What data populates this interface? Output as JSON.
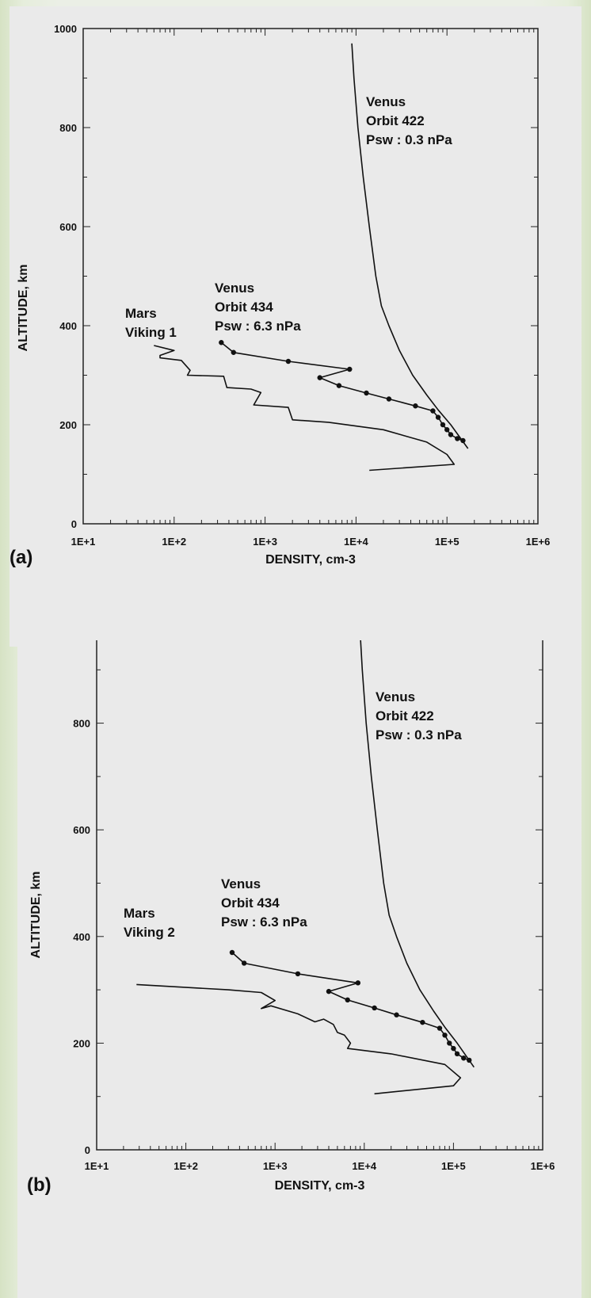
{
  "chart_data": [
    {
      "type": "line",
      "panel_label": "(a)",
      "xlabel": "DENSITY, cm-3",
      "ylabel": "ALTITUDE, km",
      "x_scale": "log",
      "xlim": [
        10,
        1000000
      ],
      "ylim": [
        0,
        1000
      ],
      "x_ticks": [
        10,
        100,
        1000,
        10000,
        100000,
        1000000
      ],
      "x_tick_labels": [
        "1E+1",
        "1E+2",
        "1E+3",
        "1E+4",
        "1E+5",
        "1E+6"
      ],
      "y_ticks": [
        0,
        200,
        400,
        600,
        800,
        1000
      ],
      "y_tick_labels": [
        "0",
        "200",
        "400",
        "600",
        "800",
        "1000"
      ],
      "grid": false,
      "annotations": [
        {
          "id": "venus422",
          "lines": [
            "Venus",
            "Orbit 422",
            "Psw :  0.3 nPa"
          ]
        },
        {
          "id": "venus434",
          "lines": [
            "Venus",
            "Orbit 434",
            "Psw :  6.3 nPa"
          ]
        },
        {
          "id": "mars",
          "lines": [
            "Mars",
            "Viking 1"
          ]
        }
      ],
      "series": [
        {
          "id": "venus422",
          "color": "#111111",
          "markers": false,
          "x": [
            9000,
            9500,
            10500,
            12000,
            14000,
            16500,
            19000,
            23000,
            30000,
            42000,
            60000,
            80000,
            110000,
            170000
          ],
          "y": [
            970,
            900,
            800,
            700,
            600,
            500,
            440,
            400,
            350,
            300,
            260,
            230,
            200,
            152
          ]
        },
        {
          "id": "venus434",
          "color": "#111111",
          "markers": true,
          "x": [
            330,
            450,
            1800,
            8500,
            4000,
            6500,
            13000,
            23000,
            45000,
            70000,
            80000,
            90000,
            100000,
            110000,
            130000,
            150000
          ],
          "y": [
            366,
            346,
            328,
            312,
            295,
            279,
            264,
            252,
            238,
            228,
            215,
            200,
            190,
            180,
            172,
            168
          ]
        },
        {
          "id": "mars",
          "color": "#111111",
          "markers": false,
          "x": [
            60,
            100,
            70,
            70,
            120,
            150,
            140,
            350,
            380,
            700,
            900,
            750,
            1800,
            2000,
            5000,
            20000,
            60000,
            100000,
            120000,
            14000
          ],
          "y": [
            360,
            350,
            340,
            335,
            330,
            310,
            300,
            298,
            275,
            272,
            265,
            240,
            235,
            210,
            205,
            190,
            165,
            140,
            120,
            108
          ]
        }
      ]
    },
    {
      "type": "line",
      "panel_label": "(b)",
      "xlabel": "DENSITY, cm-3",
      "ylabel": "ALTITUDE, km",
      "x_scale": "log",
      "xlim": [
        10,
        1000000
      ],
      "ylim": [
        0,
        1000
      ],
      "x_ticks": [
        10,
        100,
        1000,
        10000,
        100000,
        1000000
      ],
      "x_tick_labels": [
        "1E+1",
        "1E+2",
        "1E+3",
        "1E+4",
        "1E+5",
        "1E+6"
      ],
      "y_ticks": [
        0,
        200,
        400,
        600,
        800,
        1000
      ],
      "y_tick_labels": [
        "0",
        "200",
        "400",
        "600",
        "800",
        "1000"
      ],
      "grid": false,
      "annotations": [
        {
          "id": "venus422",
          "lines": [
            "Venus",
            "Orbit 422",
            "Psw :  0.3 nPa"
          ]
        },
        {
          "id": "venus434",
          "lines": [
            "Venus",
            "Orbit 434",
            "Psw :  6.3 nPa"
          ]
        },
        {
          "id": "mars",
          "lines": [
            "Mars",
            "Viking 2"
          ]
        }
      ],
      "series": [
        {
          "id": "venus422",
          "color": "#111111",
          "markers": false,
          "x": [
            9000,
            9500,
            10500,
            12000,
            14000,
            16500,
            19000,
            23000,
            30000,
            42000,
            60000,
            80000,
            110000,
            170000
          ],
          "y": [
            970,
            900,
            800,
            700,
            600,
            500,
            440,
            400,
            350,
            300,
            260,
            230,
            200,
            155
          ]
        },
        {
          "id": "venus434",
          "color": "#111111",
          "markers": true,
          "x": [
            330,
            450,
            1800,
            8500,
            4000,
            6500,
            13000,
            23000,
            45000,
            70000,
            80000,
            90000,
            100000,
            110000,
            130000,
            150000
          ],
          "y": [
            370,
            350,
            330,
            313,
            297,
            281,
            266,
            253,
            239,
            228,
            215,
            200,
            190,
            180,
            172,
            168
          ]
        },
        {
          "id": "mars",
          "color": "#111111",
          "markers": false,
          "x": [
            28,
            300,
            700,
            1000,
            700,
            900,
            1800,
            2800,
            3500,
            4500,
            5000,
            6000,
            7000,
            6500,
            20000,
            80000,
            120000,
            100000,
            13000
          ],
          "y": [
            310,
            300,
            295,
            280,
            265,
            270,
            255,
            240,
            245,
            235,
            220,
            215,
            200,
            190,
            180,
            160,
            135,
            120,
            105
          ]
        }
      ]
    }
  ]
}
